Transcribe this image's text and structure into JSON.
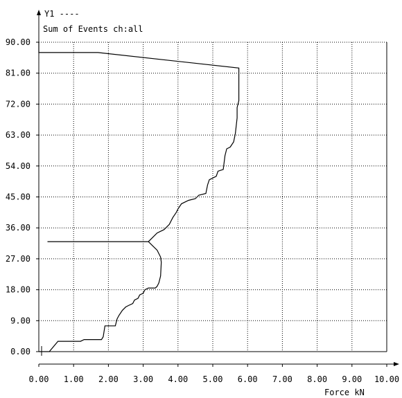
{
  "chart_data": {
    "type": "line",
    "legend_label": "Y1 ----",
    "ylabel": "Sum of Events ch:all",
    "xlabel": "Force kN",
    "xlim": [
      0,
      10
    ],
    "ylim": [
      0,
      90
    ],
    "x_ticks": [
      "0.00",
      "1.00",
      "2.00",
      "3.00",
      "4.00",
      "5.00",
      "6.00",
      "7.00",
      "8.00",
      "9.00",
      "10.00"
    ],
    "y_ticks": [
      "0.00",
      "9.00",
      "18.00",
      "27.00",
      "36.00",
      "45.00",
      "54.00",
      "63.00",
      "72.00",
      "81.00",
      "90.00"
    ],
    "grid": true,
    "series": [
      {
        "points": [
          [
            0.0,
            0.0
          ],
          [
            0.3,
            0.0
          ],
          [
            0.55,
            3.0
          ],
          [
            1.2,
            3.0
          ],
          [
            1.3,
            3.5
          ],
          [
            1.8,
            3.5
          ],
          [
            1.85,
            4.3
          ],
          [
            1.9,
            7.5
          ],
          [
            2.2,
            7.5
          ],
          [
            2.25,
            9.5
          ],
          [
            2.3,
            10.5
          ],
          [
            2.4,
            12.0
          ],
          [
            2.5,
            13.0
          ],
          [
            2.6,
            13.5
          ],
          [
            2.7,
            14.0
          ],
          [
            2.75,
            15.0
          ],
          [
            2.85,
            15.5
          ],
          [
            2.9,
            16.5
          ],
          [
            3.0,
            17.0
          ],
          [
            3.05,
            18.0
          ],
          [
            3.15,
            18.5
          ],
          [
            3.35,
            18.5
          ],
          [
            3.4,
            19.0
          ],
          [
            3.45,
            20.0
          ],
          [
            3.5,
            22.0
          ],
          [
            3.52,
            26.0
          ],
          [
            3.5,
            27.5
          ],
          [
            3.4,
            29.5
          ],
          [
            3.2,
            31.5
          ],
          [
            3.15,
            32.0
          ],
          [
            0.25,
            32.0
          ],
          [
            3.15,
            32.0
          ],
          [
            3.25,
            33.0
          ],
          [
            3.4,
            34.5
          ],
          [
            3.6,
            35.5
          ],
          [
            3.75,
            37.0
          ],
          [
            3.85,
            39.0
          ],
          [
            3.95,
            40.5
          ],
          [
            4.0,
            41.5
          ],
          [
            4.1,
            43.0
          ],
          [
            4.3,
            44.0
          ],
          [
            4.5,
            44.5
          ],
          [
            4.6,
            45.5
          ],
          [
            4.8,
            46.0
          ],
          [
            4.85,
            48.5
          ],
          [
            4.9,
            50.0
          ],
          [
            5.1,
            51.0
          ],
          [
            5.15,
            52.5
          ],
          [
            5.3,
            53.0
          ],
          [
            5.35,
            57.0
          ],
          [
            5.4,
            59.0
          ],
          [
            5.5,
            59.5
          ],
          [
            5.6,
            61.0
          ],
          [
            5.65,
            63.5
          ],
          [
            5.7,
            68.0
          ],
          [
            5.7,
            71.0
          ],
          [
            5.75,
            73.0
          ],
          [
            5.75,
            81.0
          ],
          [
            5.75,
            82.5
          ],
          [
            1.7,
            87.0
          ],
          [
            0.0,
            87.0
          ],
          [
            0.0,
            90.0
          ]
        ]
      }
    ]
  }
}
